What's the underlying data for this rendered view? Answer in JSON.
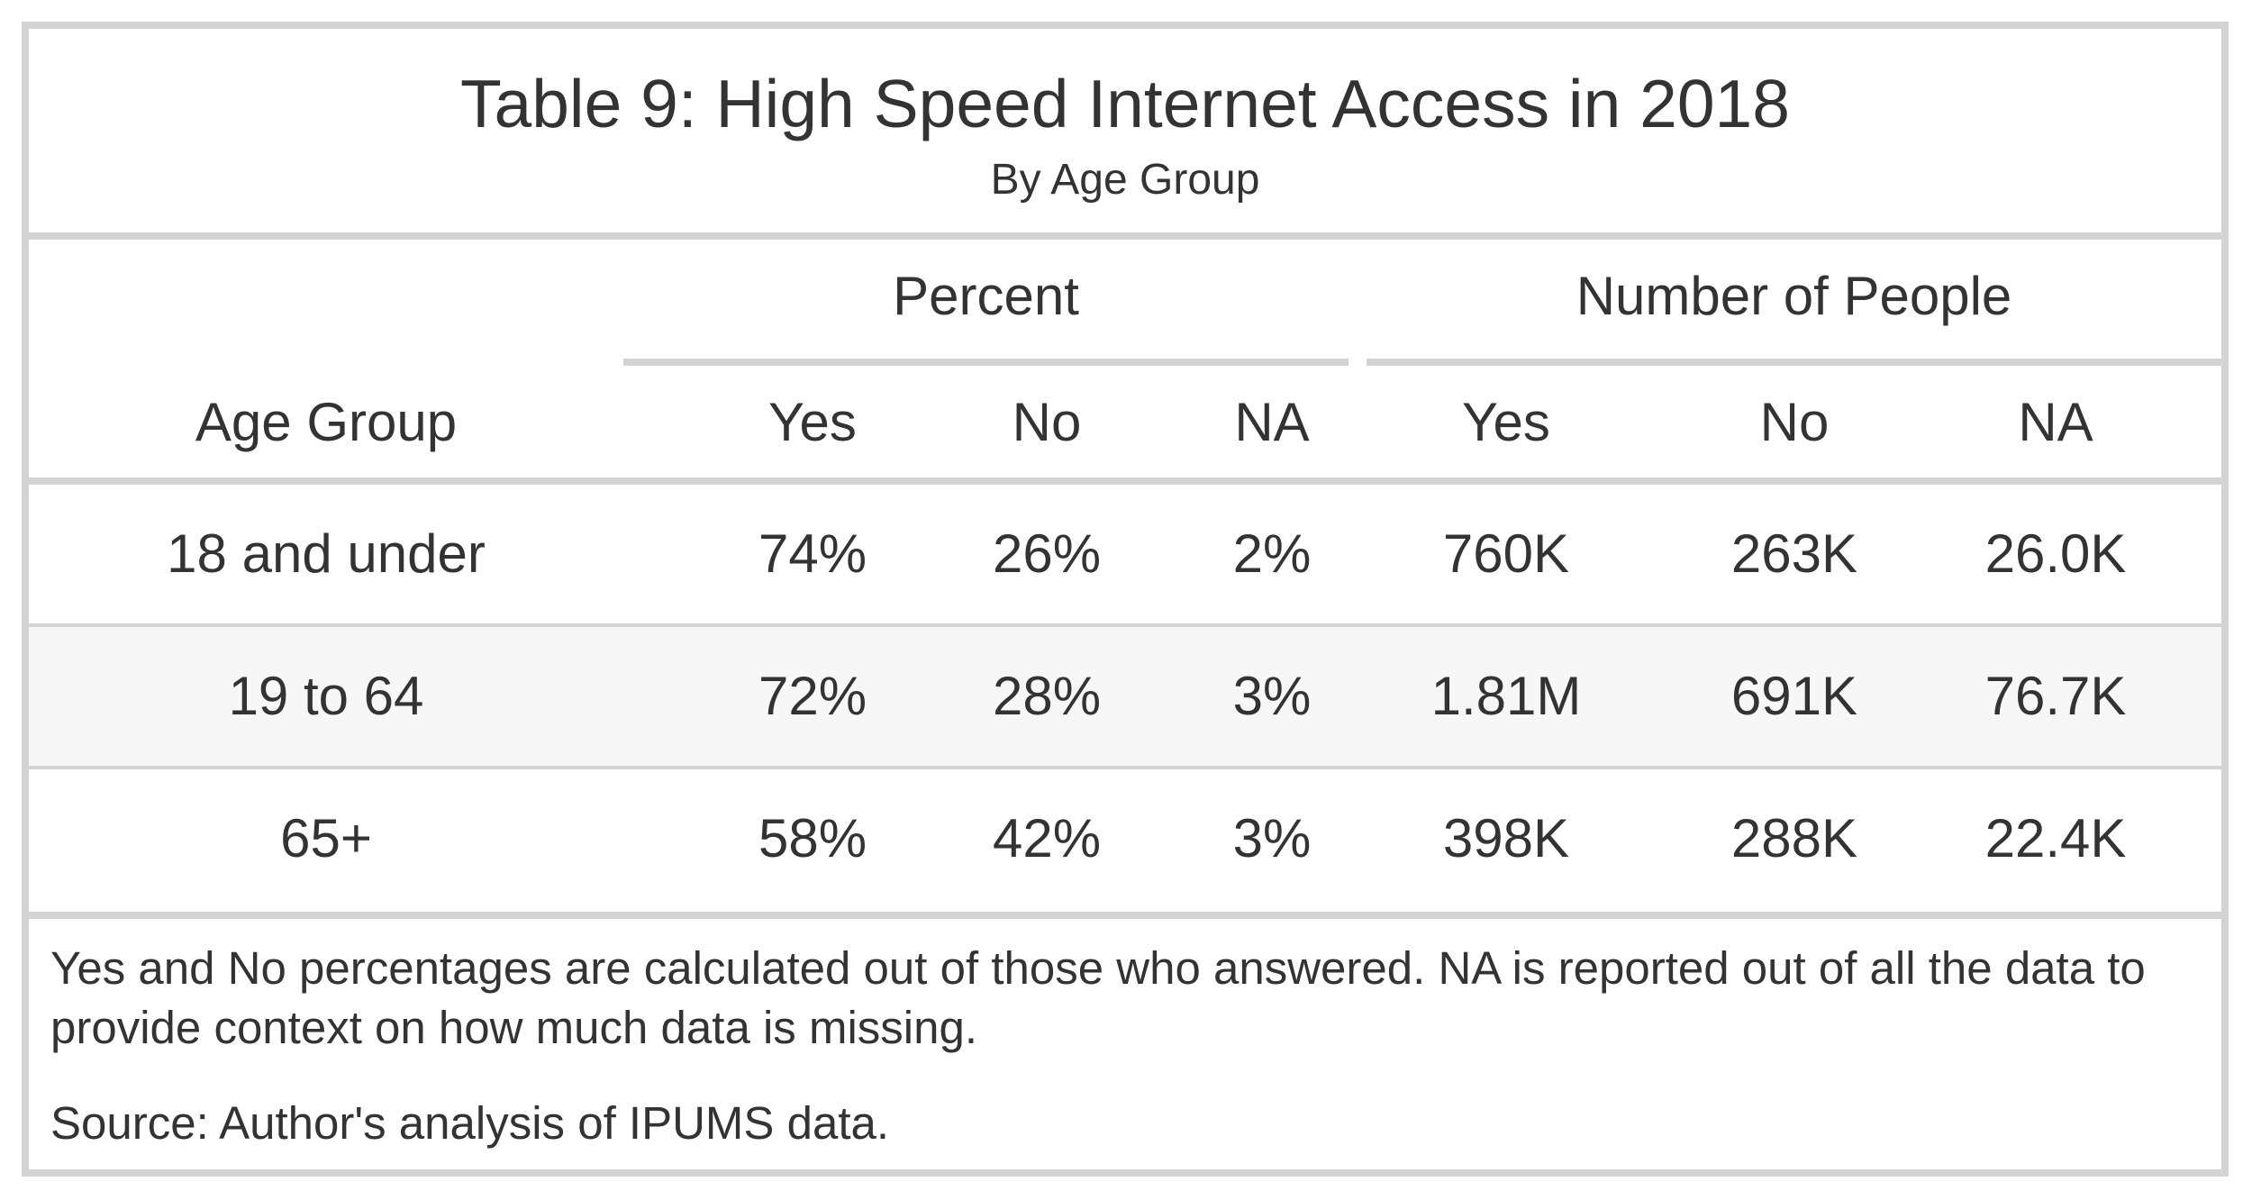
{
  "table": {
    "title": "Table 9: High Speed Internet Access in 2018",
    "subtitle": "By Age Group",
    "spanners": {
      "percent": "Percent",
      "number": "Number of People"
    },
    "columns": [
      "Age Group",
      "Yes",
      "No",
      "NA",
      "Yes",
      "No",
      "NA"
    ],
    "rows": [
      [
        "18 and under",
        "74%",
        "26%",
        "2%",
        "760K",
        "263K",
        "26.0K"
      ],
      [
        "19 to 64",
        "72%",
        "28%",
        "3%",
        "1.81M",
        "691K",
        "76.7K"
      ],
      [
        "65+",
        "58%",
        "42%",
        "3%",
        "398K",
        "288K",
        "22.4K"
      ]
    ],
    "footnotes": [
      "Yes and No percentages are calculated out of those who answered. NA is reported out of all the data to provide context on how much data is missing.",
      "Source: Author's analysis of IPUMS data."
    ]
  },
  "colors": {
    "border": "#d3d3d3",
    "text": "#333333",
    "stripe": "#f7f7f7"
  }
}
